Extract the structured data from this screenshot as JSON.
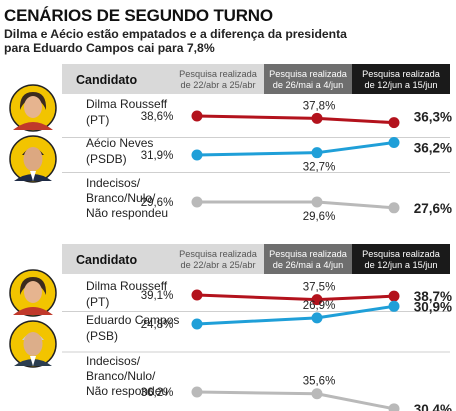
{
  "title": "CENÁRIOS DE SEGUNDO TURNO",
  "subtitle": "Dilma e Aécio estão empatados e a diferença da presidenta para Eduardo Campos cai para 7,8%",
  "colors": {
    "dilma": "#b3121c",
    "opponent": "#1f9fd8",
    "undecided": "#b9b9b9",
    "header_gray": "#d9d9d9",
    "header_dark_gray": "#6e6e6e",
    "header_black": "#1a1a1a",
    "avatar_bg": "#f2c400"
  },
  "chart_data": [
    {
      "type": "line",
      "header_label": "Candidato",
      "columns": [
        "Pesquisa realizada de 22/abr a 25/abr",
        "Pesquisa realizada de 26/mai a 4/jun",
        "Pesquisa realizada de 12/jun a 15/jun"
      ],
      "series": [
        {
          "name": "Dilma Rousseff (PT)",
          "name_lines": [
            "Dilma Rousseff",
            "(PT)"
          ],
          "values": [
            38.6,
            37.8,
            36.3
          ],
          "labels": [
            "38,6%",
            "37,8%",
            "36,3%"
          ],
          "color": "#b3121c",
          "avatar": "dilma-photo"
        },
        {
          "name": "Aécio Neves (PSDB)",
          "name_lines": [
            "Aécio Neves",
            "(PSDB)"
          ],
          "values": [
            31.9,
            32.7,
            36.2
          ],
          "labels": [
            "31,9%",
            "32,7%",
            "36,2%"
          ],
          "color": "#1f9fd8",
          "avatar": "aecio-photo"
        },
        {
          "name": "Indecisos/Branco/Nulo/Não respondeu",
          "name_lines": [
            "Indecisos/",
            "Branco/Nulo/",
            "Não respondeu"
          ],
          "values": [
            29.6,
            29.6,
            27.6
          ],
          "labels": [
            "29,6%",
            "29,6%",
            "27,6%"
          ],
          "color": "#b9b9b9"
        }
      ]
    },
    {
      "type": "line",
      "header_label": "Candidato",
      "columns": [
        "Pesquisa realizada de 22/abr a 25/abr",
        "Pesquisa realizada de 26/mai a 4/jun",
        "Pesquisa realizada de 12/jun a 15/jun"
      ],
      "series": [
        {
          "name": "Dilma Rousseff (PT)",
          "name_lines": [
            "Dilma Rousseff",
            "(PT)"
          ],
          "values": [
            39.1,
            37.5,
            38.7
          ],
          "labels": [
            "39,1%",
            "37,5%",
            "38,7%"
          ],
          "color": "#b3121c",
          "avatar": "dilma-photo"
        },
        {
          "name": "Eduardo Campos (PSB)",
          "name_lines": [
            "Eduardo Campos",
            "(PSB)"
          ],
          "values": [
            24.8,
            26.9,
            30.9
          ],
          "labels": [
            "24,8%",
            "26,9%",
            "30,9%"
          ],
          "color": "#1f9fd8",
          "avatar": "campos-photo"
        },
        {
          "name": "Indecisos/Branco/Nulo/Não respondeu",
          "name_lines": [
            "Indecisos/",
            "Branco/Nulo/",
            "Não respondeu"
          ],
          "values": [
            36.2,
            35.6,
            30.4
          ],
          "labels": [
            "36,2%",
            "35,6%",
            "30,4%"
          ],
          "color": "#b9b9b9"
        }
      ]
    }
  ]
}
